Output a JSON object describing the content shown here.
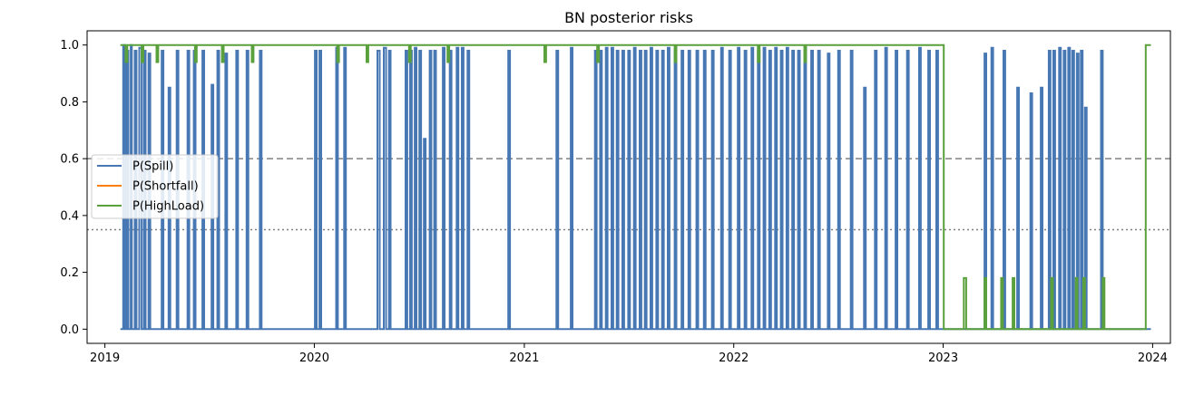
{
  "chart_data": {
    "type": "line",
    "title": "BN posterior risks",
    "xlabel": "",
    "ylabel": "",
    "xlim": [
      "2018-12-01",
      "2024-02-01"
    ],
    "ylim": [
      -0.05,
      1.05
    ],
    "x_ticks": [
      "2019",
      "2020",
      "2021",
      "2022",
      "2023",
      "2024"
    ],
    "y_ticks": [
      "0.0",
      "0.2",
      "0.4",
      "0.6",
      "0.8",
      "1.0"
    ],
    "grid": false,
    "legend_position": "center-left",
    "reference_lines": [
      {
        "y": 0.6,
        "style": "dashed",
        "color": "#808080"
      },
      {
        "y": 0.35,
        "style": "dotted",
        "color": "#808080"
      }
    ],
    "series": [
      {
        "name": "P(Spill)",
        "color": "#4878b4",
        "step_points": [
          [
            "2019-01-28",
            0.0
          ],
          [
            "2019-02-02",
            1.0
          ],
          [
            "2019-02-05",
            0.0
          ],
          [
            "2019-02-08",
            0.98
          ],
          [
            "2019-02-11",
            0.0
          ],
          [
            "2019-02-15",
            1.0
          ],
          [
            "2019-02-17",
            0.0
          ],
          [
            "2019-02-22",
            0.98
          ],
          [
            "2019-02-25",
            0.0
          ],
          [
            "2019-03-02",
            0.99
          ],
          [
            "2019-03-06",
            0.0
          ],
          [
            "2019-03-10",
            0.98
          ],
          [
            "2019-03-13",
            0.0
          ],
          [
            "2019-03-18",
            0.97
          ],
          [
            "2019-03-21",
            0.0
          ],
          [
            "2019-04-10",
            0.98
          ],
          [
            "2019-04-13",
            0.0
          ],
          [
            "2019-04-22",
            0.85
          ],
          [
            "2019-04-25",
            0.0
          ],
          [
            "2019-05-06",
            0.98
          ],
          [
            "2019-05-09",
            0.0
          ],
          [
            "2019-05-25",
            0.98
          ],
          [
            "2019-05-28",
            0.0
          ],
          [
            "2019-06-05",
            0.98
          ],
          [
            "2019-06-08",
            0.0
          ],
          [
            "2019-06-20",
            0.98
          ],
          [
            "2019-06-23",
            0.0
          ],
          [
            "2019-07-06",
            0.86
          ],
          [
            "2019-07-09",
            0.0
          ],
          [
            "2019-07-16",
            0.98
          ],
          [
            "2019-07-19",
            0.0
          ],
          [
            "2019-07-30",
            0.97
          ],
          [
            "2019-08-02",
            0.0
          ],
          [
            "2019-08-18",
            0.98
          ],
          [
            "2019-08-21",
            0.0
          ],
          [
            "2019-09-05",
            0.98
          ],
          [
            "2019-09-08",
            0.0
          ],
          [
            "2019-09-28",
            0.98
          ],
          [
            "2019-10-01",
            0.0
          ],
          [
            "2020-01-02",
            0.98
          ],
          [
            "2020-01-05",
            0.0
          ],
          [
            "2020-01-10",
            0.98
          ],
          [
            "2020-01-13",
            0.0
          ],
          [
            "2020-02-08",
            0.99
          ],
          [
            "2020-02-11",
            0.0
          ],
          [
            "2020-02-22",
            0.99
          ],
          [
            "2020-02-25",
            0.0
          ],
          [
            "2020-04-20",
            0.98
          ],
          [
            "2020-04-24",
            0.0
          ],
          [
            "2020-05-01",
            0.99
          ],
          [
            "2020-05-05",
            0.0
          ],
          [
            "2020-05-10",
            0.98
          ],
          [
            "2020-05-13",
            0.0
          ],
          [
            "2020-06-08",
            0.98
          ],
          [
            "2020-06-11",
            0.0
          ],
          [
            "2020-06-16",
            0.98
          ],
          [
            "2020-06-19",
            0.0
          ],
          [
            "2020-06-24",
            0.99
          ],
          [
            "2020-06-27",
            0.0
          ],
          [
            "2020-07-02",
            0.98
          ],
          [
            "2020-07-05",
            0.0
          ],
          [
            "2020-07-10",
            0.67
          ],
          [
            "2020-07-13",
            0.0
          ],
          [
            "2020-07-20",
            0.98
          ],
          [
            "2020-07-23",
            0.0
          ],
          [
            "2020-07-28",
            0.98
          ],
          [
            "2020-07-31",
            0.0
          ],
          [
            "2020-08-12",
            0.99
          ],
          [
            "2020-08-15",
            0.0
          ],
          [
            "2020-08-24",
            0.98
          ],
          [
            "2020-08-27",
            0.0
          ],
          [
            "2020-09-05",
            0.99
          ],
          [
            "2020-09-08",
            0.0
          ],
          [
            "2020-09-14",
            0.99
          ],
          [
            "2020-09-17",
            0.0
          ],
          [
            "2020-09-24",
            0.98
          ],
          [
            "2020-09-27",
            0.0
          ],
          [
            "2020-12-04",
            0.98
          ],
          [
            "2020-12-07",
            0.0
          ],
          [
            "2021-02-26",
            0.98
          ],
          [
            "2021-03-01",
            0.0
          ],
          [
            "2021-03-23",
            0.99
          ],
          [
            "2021-03-26",
            0.0
          ],
          [
            "2021-05-04",
            0.98
          ],
          [
            "2021-05-07",
            0.0
          ],
          [
            "2021-05-13",
            0.98
          ],
          [
            "2021-05-16",
            0.0
          ],
          [
            "2021-05-23",
            0.99
          ],
          [
            "2021-05-26",
            0.0
          ],
          [
            "2021-06-02",
            0.99
          ],
          [
            "2021-06-05",
            0.0
          ],
          [
            "2021-06-11",
            0.98
          ],
          [
            "2021-06-14",
            0.0
          ],
          [
            "2021-06-21",
            0.98
          ],
          [
            "2021-06-24",
            0.0
          ],
          [
            "2021-07-01",
            0.98
          ],
          [
            "2021-07-04",
            0.0
          ],
          [
            "2021-07-11",
            0.99
          ],
          [
            "2021-07-14",
            0.0
          ],
          [
            "2021-07-21",
            0.98
          ],
          [
            "2021-07-24",
            0.0
          ],
          [
            "2021-07-30",
            0.98
          ],
          [
            "2021-08-02",
            0.0
          ],
          [
            "2021-08-09",
            0.99
          ],
          [
            "2021-08-12",
            0.0
          ],
          [
            "2021-08-19",
            0.98
          ],
          [
            "2021-08-22",
            0.0
          ],
          [
            "2021-08-29",
            0.98
          ],
          [
            "2021-09-01",
            0.0
          ],
          [
            "2021-09-08",
            0.99
          ],
          [
            "2021-09-11",
            0.0
          ],
          [
            "2021-09-20",
            0.98
          ],
          [
            "2021-09-23",
            0.0
          ],
          [
            "2021-10-02",
            0.98
          ],
          [
            "2021-10-05",
            0.0
          ],
          [
            "2021-10-14",
            0.98
          ],
          [
            "2021-10-17",
            0.0
          ],
          [
            "2021-10-28",
            0.98
          ],
          [
            "2021-10-31",
            0.0
          ],
          [
            "2021-11-10",
            0.98
          ],
          [
            "2021-11-13",
            0.0
          ],
          [
            "2021-11-24",
            0.98
          ],
          [
            "2021-11-27",
            0.0
          ],
          [
            "2021-12-10",
            0.99
          ],
          [
            "2021-12-13",
            0.0
          ],
          [
            "2021-12-24",
            0.98
          ],
          [
            "2021-12-27",
            0.0
          ],
          [
            "2022-01-08",
            0.99
          ],
          [
            "2022-01-11",
            0.0
          ],
          [
            "2022-01-20",
            0.98
          ],
          [
            "2022-01-23",
            0.0
          ],
          [
            "2022-02-01",
            0.99
          ],
          [
            "2022-02-04",
            0.0
          ],
          [
            "2022-02-12",
            0.98
          ],
          [
            "2022-02-15",
            0.0
          ],
          [
            "2022-02-22",
            0.99
          ],
          [
            "2022-02-25",
            0.0
          ],
          [
            "2022-03-04",
            0.98
          ],
          [
            "2022-03-07",
            0.0
          ],
          [
            "2022-03-14",
            0.99
          ],
          [
            "2022-03-17",
            0.0
          ],
          [
            "2022-03-24",
            0.98
          ],
          [
            "2022-03-27",
            0.0
          ],
          [
            "2022-04-03",
            0.99
          ],
          [
            "2022-04-06",
            0.0
          ],
          [
            "2022-04-13",
            0.98
          ],
          [
            "2022-04-16",
            0.0
          ],
          [
            "2022-04-23",
            0.98
          ],
          [
            "2022-04-26",
            0.0
          ],
          [
            "2022-05-04",
            0.99
          ],
          [
            "2022-05-07",
            0.0
          ],
          [
            "2022-05-16",
            0.98
          ],
          [
            "2022-05-19",
            0.0
          ],
          [
            "2022-05-28",
            0.98
          ],
          [
            "2022-05-31",
            0.0
          ],
          [
            "2022-06-14",
            0.97
          ],
          [
            "2022-06-17",
            0.0
          ],
          [
            "2022-07-02",
            0.98
          ],
          [
            "2022-07-05",
            0.0
          ],
          [
            "2022-07-24",
            0.98
          ],
          [
            "2022-07-27",
            0.0
          ],
          [
            "2022-08-16",
            0.85
          ],
          [
            "2022-08-19",
            0.0
          ],
          [
            "2022-09-04",
            0.98
          ],
          [
            "2022-09-07",
            0.0
          ],
          [
            "2022-09-22",
            0.99
          ],
          [
            "2022-09-25",
            0.0
          ],
          [
            "2022-10-10",
            0.98
          ],
          [
            "2022-10-13",
            0.0
          ],
          [
            "2022-10-30",
            0.98
          ],
          [
            "2022-11-02",
            0.0
          ],
          [
            "2022-11-20",
            0.99
          ],
          [
            "2022-11-23",
            0.0
          ],
          [
            "2022-12-06",
            0.98
          ],
          [
            "2022-12-09",
            0.0
          ],
          [
            "2022-12-20",
            0.98
          ],
          [
            "2022-12-23",
            0.0
          ],
          [
            "2023-03-14",
            0.97
          ],
          [
            "2023-03-17",
            0.0
          ],
          [
            "2023-03-26",
            0.99
          ],
          [
            "2023-03-29",
            0.0
          ],
          [
            "2023-04-16",
            0.98
          ],
          [
            "2023-04-19",
            0.0
          ],
          [
            "2023-05-10",
            0.85
          ],
          [
            "2023-05-13",
            0.0
          ],
          [
            "2023-06-02",
            0.83
          ],
          [
            "2023-06-05",
            0.0
          ],
          [
            "2023-06-20",
            0.85
          ],
          [
            "2023-06-23",
            0.0
          ],
          [
            "2023-07-04",
            0.98
          ],
          [
            "2023-07-07",
            0.0
          ],
          [
            "2023-07-12",
            0.98
          ],
          [
            "2023-07-15",
            0.0
          ],
          [
            "2023-07-22",
            0.99
          ],
          [
            "2023-07-25",
            0.0
          ],
          [
            "2023-07-30",
            0.98
          ],
          [
            "2023-08-02",
            0.0
          ],
          [
            "2023-08-07",
            0.99
          ],
          [
            "2023-08-10",
            0.0
          ],
          [
            "2023-08-14",
            0.98
          ],
          [
            "2023-08-17",
            0.0
          ],
          [
            "2023-08-22",
            0.97
          ],
          [
            "2023-08-25",
            0.0
          ],
          [
            "2023-08-29",
            0.98
          ],
          [
            "2023-09-01",
            0.0
          ],
          [
            "2023-09-05",
            0.78
          ],
          [
            "2023-09-08",
            0.0
          ],
          [
            "2023-10-03",
            0.98
          ],
          [
            "2023-10-06",
            0.0
          ],
          [
            "2023-12-29",
            0.0
          ]
        ]
      },
      {
        "name": "P(Shortfall)",
        "color": "#ff7f0e",
        "step_points": []
      },
      {
        "name": "P(HighLoad)",
        "color": "#5aa03c",
        "step_points": [
          [
            "2019-01-28",
            1.0
          ],
          [
            "2019-02-06",
            0.94
          ],
          [
            "2019-02-09",
            1.0
          ],
          [
            "2019-03-06",
            0.94
          ],
          [
            "2019-03-09",
            1.0
          ],
          [
            "2019-04-01",
            0.94
          ],
          [
            "2019-04-04",
            1.0
          ],
          [
            "2019-06-07",
            0.94
          ],
          [
            "2019-06-10",
            1.0
          ],
          [
            "2019-07-24",
            0.94
          ],
          [
            "2019-07-27",
            1.0
          ],
          [
            "2019-09-14",
            0.94
          ],
          [
            "2019-09-17",
            1.0
          ],
          [
            "2020-02-10",
            0.94
          ],
          [
            "2020-02-13",
            1.0
          ],
          [
            "2020-04-01",
            0.94
          ],
          [
            "2020-04-04",
            1.0
          ],
          [
            "2020-06-14",
            0.94
          ],
          [
            "2020-06-17",
            1.0
          ],
          [
            "2020-08-20",
            0.94
          ],
          [
            "2020-08-23",
            1.0
          ],
          [
            "2021-02-05",
            0.94
          ],
          [
            "2021-02-08",
            1.0
          ],
          [
            "2021-05-08",
            0.94
          ],
          [
            "2021-05-11",
            1.0
          ],
          [
            "2021-09-20",
            0.94
          ],
          [
            "2021-09-23",
            1.0
          ],
          [
            "2022-02-12",
            0.94
          ],
          [
            "2022-02-15",
            1.0
          ],
          [
            "2022-05-04",
            0.94
          ],
          [
            "2022-05-07",
            1.0
          ],
          [
            "2023-01-02",
            0.0
          ],
          [
            "2023-02-06",
            0.18
          ],
          [
            "2023-02-10",
            0.0
          ],
          [
            "2023-03-14",
            0.18
          ],
          [
            "2023-03-17",
            0.0
          ],
          [
            "2023-04-12",
            0.18
          ],
          [
            "2023-04-15",
            0.0
          ],
          [
            "2023-05-02",
            0.18
          ],
          [
            "2023-05-05",
            0.0
          ],
          [
            "2023-07-08",
            0.18
          ],
          [
            "2023-07-11",
            0.0
          ],
          [
            "2023-08-20",
            0.18
          ],
          [
            "2023-08-23",
            0.0
          ],
          [
            "2023-09-02",
            0.18
          ],
          [
            "2023-09-05",
            0.0
          ],
          [
            "2023-10-06",
            0.18
          ],
          [
            "2023-10-09",
            0.0
          ],
          [
            "2023-12-20",
            1.0
          ],
          [
            "2023-12-29",
            1.0
          ]
        ]
      }
    ]
  }
}
